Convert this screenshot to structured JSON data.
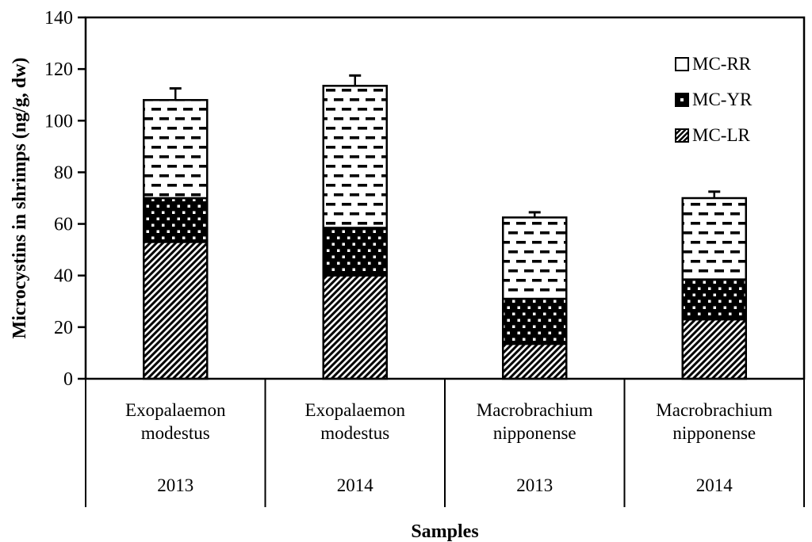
{
  "chart_data": {
    "type": "bar",
    "subtype": "stacked",
    "title": "",
    "xlabel": "Samples",
    "ylabel": "Microcystins in shrimps (ng/g, dw)",
    "ylim": [
      0,
      140
    ],
    "yticks": [
      0,
      20,
      40,
      60,
      80,
      100,
      120,
      140
    ],
    "grid": "off",
    "legend_position": "upper-right",
    "categories": [
      {
        "species_line1": "Exopalaemon",
        "species_line2": "modestus",
        "year": "2013"
      },
      {
        "species_line1": "Exopalaemon",
        "species_line2": "modestus",
        "year": "2014"
      },
      {
        "species_line1": "Macrobrachium",
        "species_line2": "nipponense",
        "year": "2013"
      },
      {
        "species_line1": "Macrobrachium",
        "species_line2": "nipponense",
        "year": "2014"
      }
    ],
    "series": [
      {
        "name": "MC-LR",
        "pattern": "diagonal-hatch",
        "values": [
          53,
          40,
          13.5,
          23
        ]
      },
      {
        "name": "MC-YR",
        "pattern": "black-white-dots",
        "values": [
          17,
          18.5,
          17.5,
          15.5
        ]
      },
      {
        "name": "MC-RR",
        "pattern": "white-black-dashes",
        "values": [
          38,
          55,
          31.5,
          31.5
        ]
      }
    ],
    "stack_totals": [
      108,
      113.5,
      62.5,
      70
    ],
    "error_bars_plus": [
      4.5,
      4,
      2,
      2.5
    ],
    "legend_items": [
      {
        "label": "MC-RR",
        "swatch": "white-black-dashes"
      },
      {
        "label": "MC-YR",
        "swatch": "black-white-dots"
      },
      {
        "label": "MC-LR",
        "swatch": "diagonal-hatch"
      }
    ],
    "colors": {
      "foreground": "#000000",
      "background": "#ffffff"
    }
  }
}
